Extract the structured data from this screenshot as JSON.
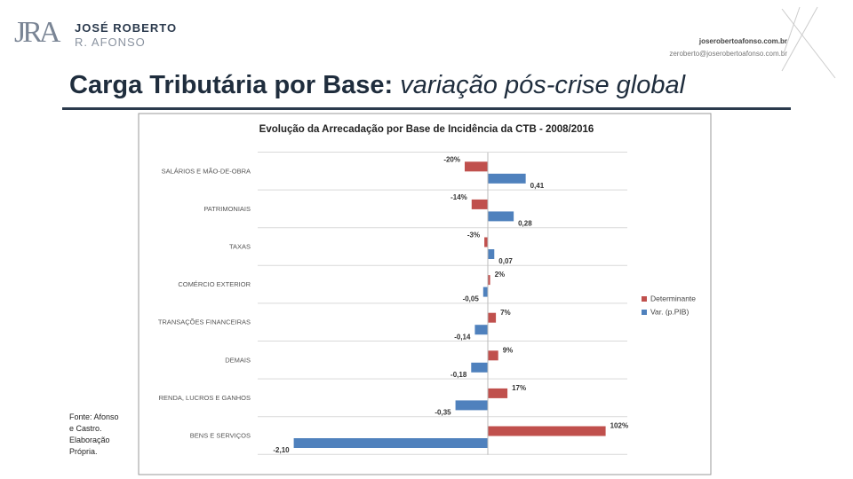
{
  "header": {
    "logo_mark": "JRA",
    "logo_name": "JOSÉ ROBERTO",
    "logo_surname": "R. AFONSO",
    "website": "joserobertoafonso.com.br",
    "email": "zeroberto@joserobertoafonso.com.br",
    "title": "Carga Tributária por Base:",
    "title_emphasis": "variação pós-crise global"
  },
  "chart_data": {
    "type": "bar",
    "orientation": "horizontal",
    "title": "Evolução da Arrecadação por Base de Incidência da CTB - 2008/2016",
    "categories": [
      "SALÁRIOS E MÃO-DE-OBRA",
      "PATRIMONIAIS",
      "TAXAS",
      "COMÉRCIO EXTERIOR",
      "TRANSAÇÕES FINANCEIRAS",
      "DEMAIS",
      "RENDA, LUCROS E GANHOS",
      "BENS E SERVIÇOS"
    ],
    "series": [
      {
        "name": "Determinante",
        "color": "#c0504d",
        "values": [
          -20,
          -14,
          -3,
          2,
          7,
          9,
          17,
          102
        ],
        "value_labels": [
          "-20%",
          "-14%",
          "-3%",
          "2%",
          "7%",
          "9%",
          "17%",
          "102%"
        ]
      },
      {
        "name": "Var. (p.PIB)",
        "color": "#4f81bd",
        "values": [
          0.41,
          0.28,
          0.07,
          -0.05,
          -0.14,
          -0.18,
          -0.35,
          -2.1
        ],
        "value_labels": [
          "0,41",
          "0,28",
          "0,07",
          "-0,05",
          "-0,14",
          "-0,18",
          "-0,35",
          "-2,10"
        ]
      }
    ],
    "legend": "right",
    "grid": true
  },
  "footnote": "Fonte: Afonso e Castro. Elaboração Própria."
}
